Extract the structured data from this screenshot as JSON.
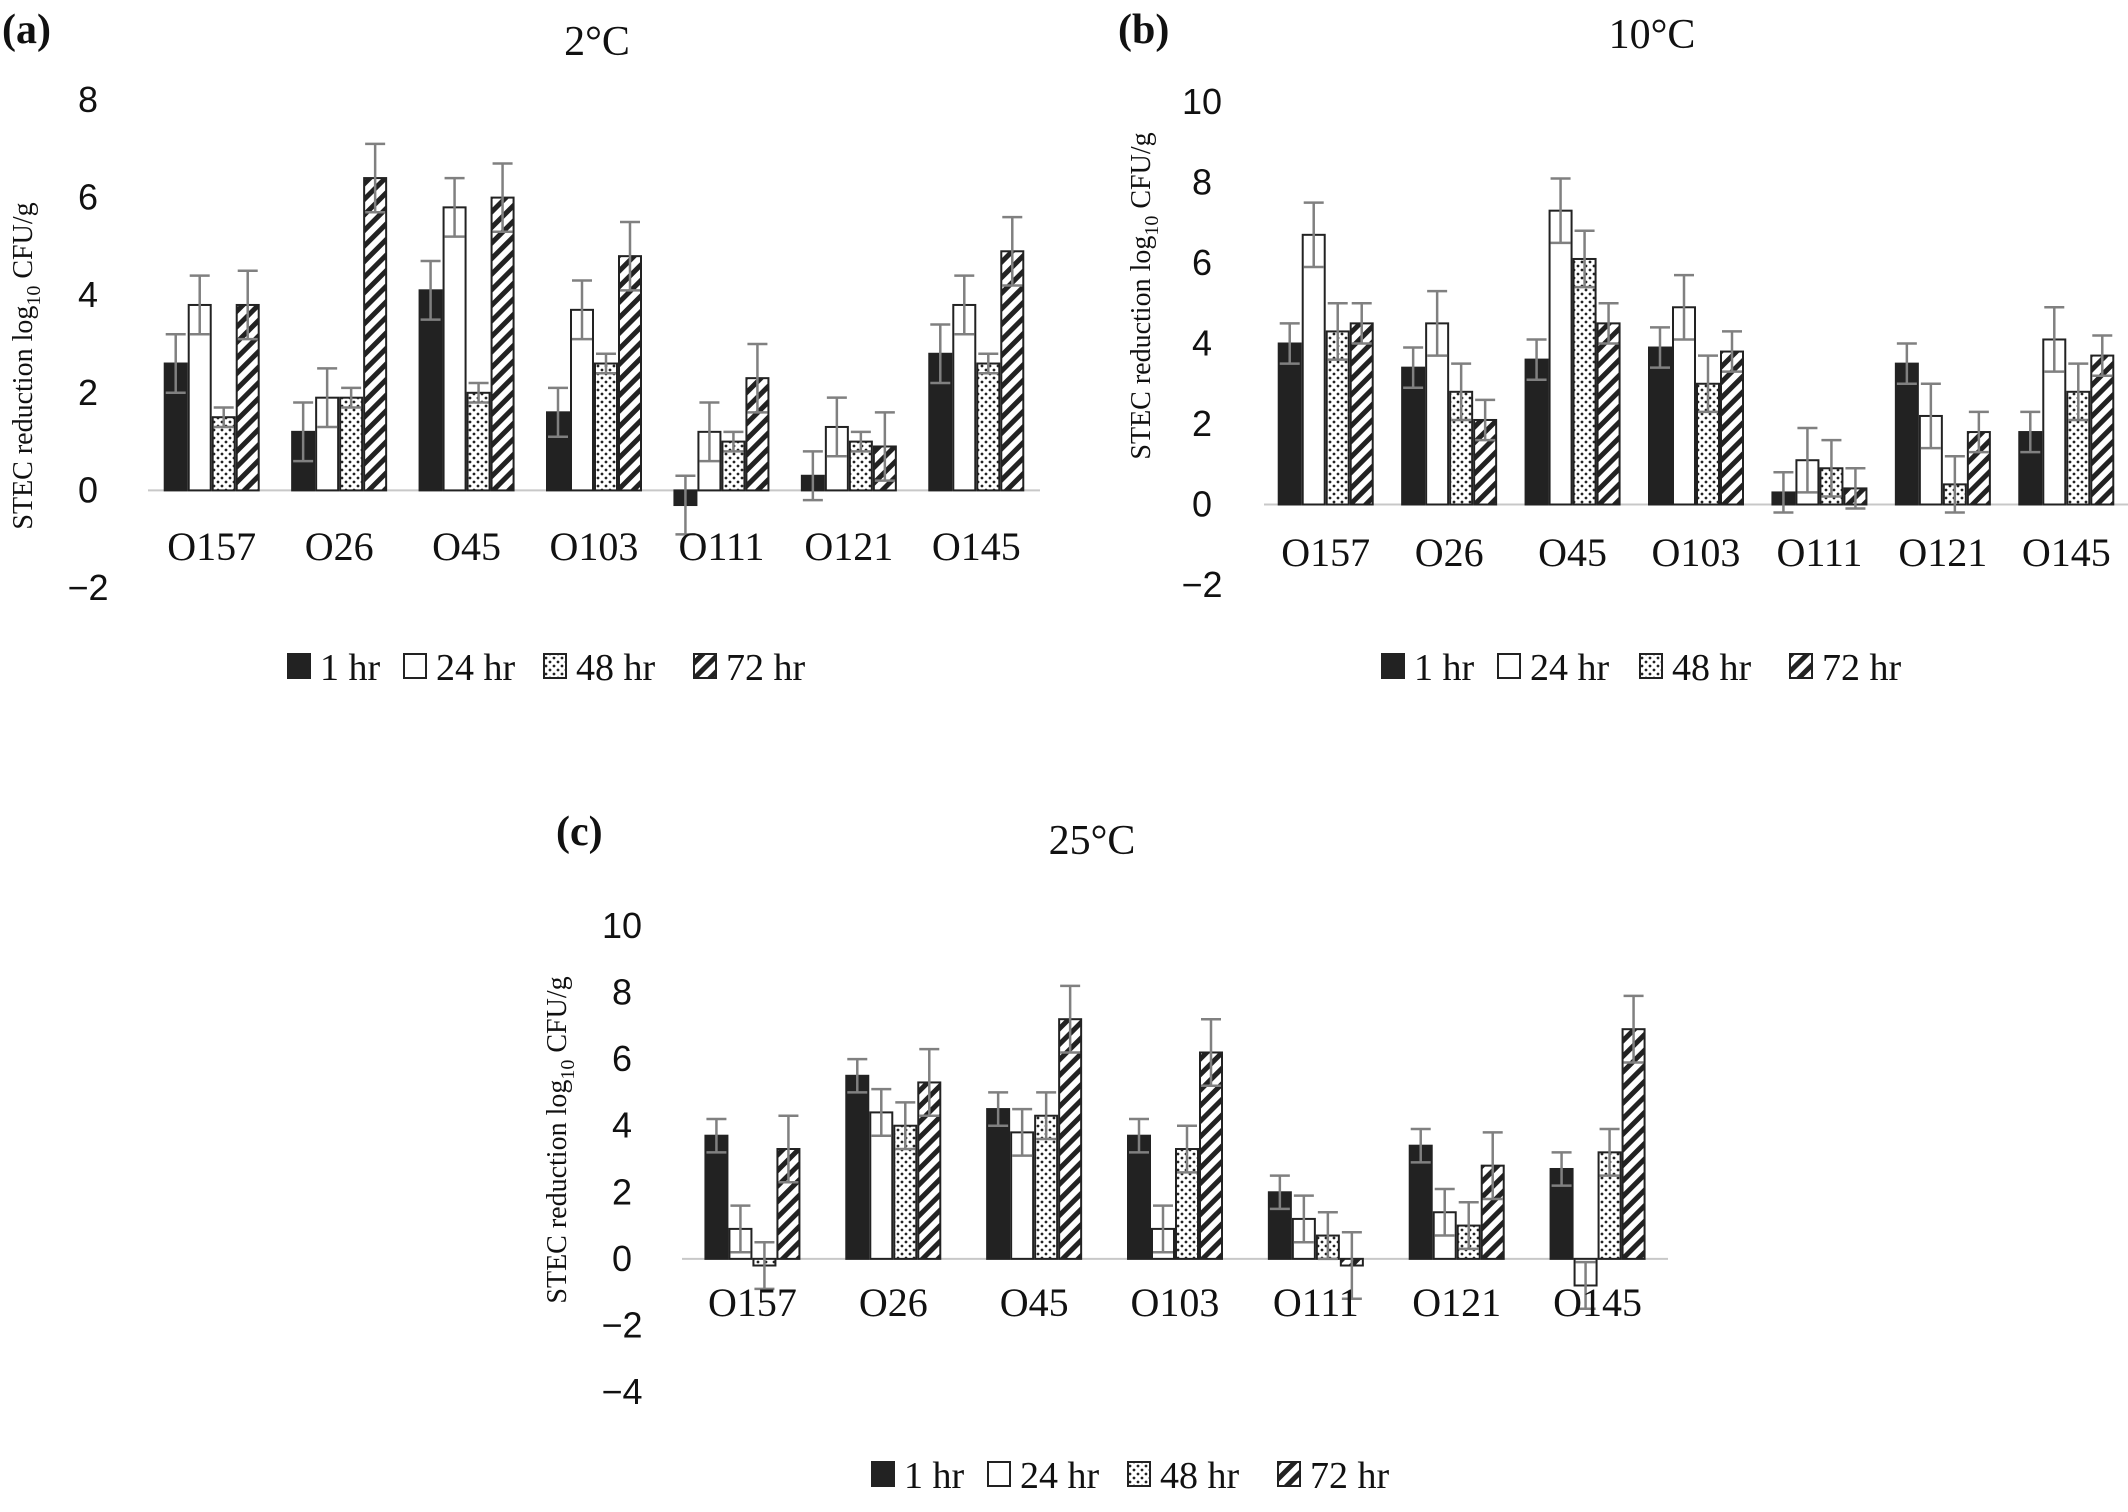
{
  "figure": {
    "legend_labels": [
      "1 hr",
      "24 hr",
      "48 hr",
      "72 hr"
    ],
    "patterns": [
      "solid",
      "open",
      "dotted",
      "hatched"
    ],
    "colors": {
      "bar_dark": "#222222",
      "bar_stroke": "#222222",
      "error_bar": "#808080",
      "axis": "#c8c8c8",
      "text": "#111111"
    }
  },
  "panels": [
    {
      "letter": "(a)",
      "title": "2°C",
      "ylabel_main": "STEC reduction log",
      "ylabel_sub": "10",
      "ylabel_tail": " CFU/g"
    },
    {
      "letter": "(b)",
      "title": "10°C",
      "ylabel_main": "STEC reduction log",
      "ylabel_sub": "10",
      "ylabel_tail": " CFU/g"
    },
    {
      "letter": "(c)",
      "title": "25°C",
      "ylabel_main": "STEC reduction log",
      "ylabel_sub": "10",
      "ylabel_tail": " CFU/g"
    }
  ],
  "chart_data": [
    {
      "type": "bar",
      "title": "2°C",
      "ylabel": "STEC reduction log10 CFU/g",
      "ylim": [
        -2,
        8
      ],
      "yticks": [
        "−2",
        "0",
        "2",
        "4",
        "6",
        "8"
      ],
      "categories": [
        "O157",
        "O26",
        "O45",
        "O103",
        "O111",
        "O121",
        "O145"
      ],
      "series": [
        {
          "name": "1 hr",
          "values": [
            2.6,
            1.2,
            4.1,
            1.6,
            -0.3,
            0.3,
            2.8
          ],
          "errors": [
            0.6,
            0.6,
            0.6,
            0.5,
            0.6,
            0.5,
            0.6
          ]
        },
        {
          "name": "24 hr",
          "values": [
            3.8,
            1.9,
            5.8,
            3.7,
            1.2,
            1.3,
            3.8
          ],
          "errors": [
            0.6,
            0.6,
            0.6,
            0.6,
            0.6,
            0.6,
            0.6
          ]
        },
        {
          "name": "48 hr",
          "values": [
            1.5,
            1.9,
            2.0,
            2.6,
            1.0,
            1.0,
            2.6
          ],
          "errors": [
            0.2,
            0.2,
            0.2,
            0.2,
            0.2,
            0.2,
            0.2
          ]
        },
        {
          "name": "72 hr",
          "values": [
            3.8,
            6.4,
            6.0,
            4.8,
            2.3,
            0.9,
            4.9
          ],
          "errors": [
            0.7,
            0.7,
            0.7,
            0.7,
            0.7,
            0.7,
            0.7
          ]
        }
      ],
      "legend": "bottom"
    },
    {
      "type": "bar",
      "title": "10°C",
      "ylabel": "STEC reduction log10 CFU/g",
      "ylim": [
        -2,
        10
      ],
      "yticks": [
        "−2",
        "0",
        "2",
        "4",
        "6",
        "8",
        "10"
      ],
      "categories": [
        "O157",
        "O26",
        "O45",
        "O103",
        "O111",
        "O121",
        "O145"
      ],
      "series": [
        {
          "name": "1 hr",
          "values": [
            4.0,
            3.4,
            3.6,
            3.9,
            0.3,
            3.5,
            1.8
          ],
          "errors": [
            0.5,
            0.5,
            0.5,
            0.5,
            0.5,
            0.5,
            0.5
          ]
        },
        {
          "name": "24 hr",
          "values": [
            6.7,
            4.5,
            7.3,
            4.9,
            1.1,
            2.2,
            4.1
          ],
          "errors": [
            0.8,
            0.8,
            0.8,
            0.8,
            0.8,
            0.8,
            0.8
          ]
        },
        {
          "name": "48 hr",
          "values": [
            4.3,
            2.8,
            6.1,
            3.0,
            0.9,
            0.5,
            2.8
          ],
          "errors": [
            0.7,
            0.7,
            0.7,
            0.7,
            0.7,
            0.7,
            0.7
          ]
        },
        {
          "name": "72 hr",
          "values": [
            4.5,
            2.1,
            4.5,
            3.8,
            0.4,
            1.8,
            3.7
          ],
          "errors": [
            0.5,
            0.5,
            0.5,
            0.5,
            0.5,
            0.5,
            0.5
          ]
        }
      ],
      "legend": "bottom"
    },
    {
      "type": "bar",
      "title": "25°C",
      "ylabel": "STEC reduction log10 CFU/g",
      "ylim": [
        -4,
        10
      ],
      "yticks": [
        "−4",
        "−2",
        "0",
        "2",
        "4",
        "6",
        "8",
        "10"
      ],
      "categories": [
        "O157",
        "O26",
        "O45",
        "O103",
        "O111",
        "O121",
        "O145"
      ],
      "series": [
        {
          "name": "1 hr",
          "values": [
            3.7,
            5.5,
            4.5,
            3.7,
            2.0,
            3.4,
            2.7
          ],
          "errors": [
            0.5,
            0.5,
            0.5,
            0.5,
            0.5,
            0.5,
            0.5
          ]
        },
        {
          "name": "24 hr",
          "values": [
            0.9,
            4.4,
            3.8,
            0.9,
            1.2,
            1.4,
            -0.8
          ],
          "errors": [
            0.7,
            0.7,
            0.7,
            0.7,
            0.7,
            0.7,
            0.7
          ]
        },
        {
          "name": "48 hr",
          "values": [
            -0.2,
            4.0,
            4.3,
            3.3,
            0.7,
            1.0,
            3.2
          ],
          "errors": [
            0.7,
            0.7,
            0.7,
            0.7,
            0.7,
            0.7,
            0.7
          ]
        },
        {
          "name": "72 hr",
          "values": [
            3.3,
            5.3,
            7.2,
            6.2,
            -0.2,
            2.8,
            6.9
          ],
          "errors": [
            1.0,
            1.0,
            1.0,
            1.0,
            1.0,
            1.0,
            1.0
          ]
        }
      ],
      "legend": "bottom"
    }
  ]
}
